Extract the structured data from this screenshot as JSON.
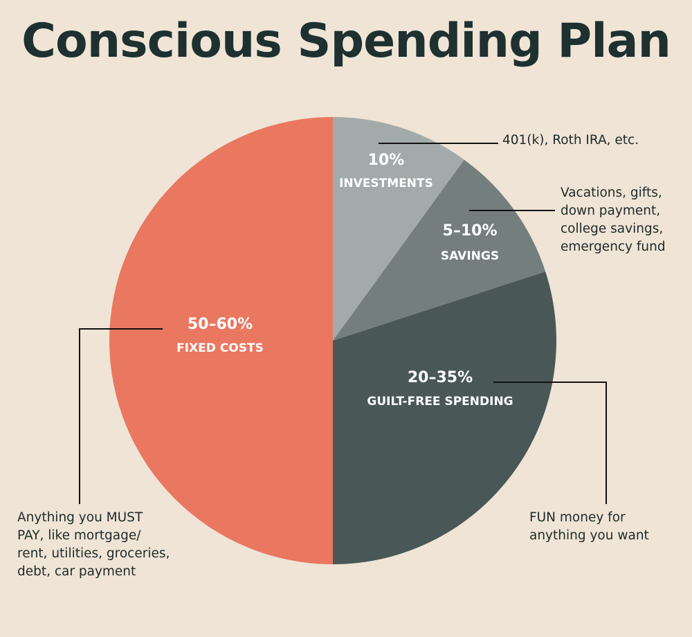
{
  "chart_data": {
    "type": "pie",
    "title": "Conscious Spending Plan",
    "slices": [
      {
        "percent_label": "10%",
        "name": "INVESTMENTS",
        "value": 10,
        "color": "#a3abaa",
        "note": "401(k), Roth IRA, etc."
      },
      {
        "percent_label": "5–10%",
        "name": "SAVINGS",
        "value": 10,
        "color": "#747f7d",
        "note": "Vacations, gifts,\ndown payment,\ncollege savings,\nemergency fund"
      },
      {
        "percent_label": "20–35%",
        "name": "GUILT-FREE SPENDING",
        "value": 30,
        "color": "#495856",
        "note": "FUN money for\nanything you want"
      },
      {
        "percent_label": "50–60%",
        "name": "FIXED COSTS",
        "value": 50,
        "color": "#ea7760",
        "note": "Anything you MUST\nPAY, like mortgage/\nrent, utilities, groceries,\ndebt, car payment"
      }
    ]
  }
}
